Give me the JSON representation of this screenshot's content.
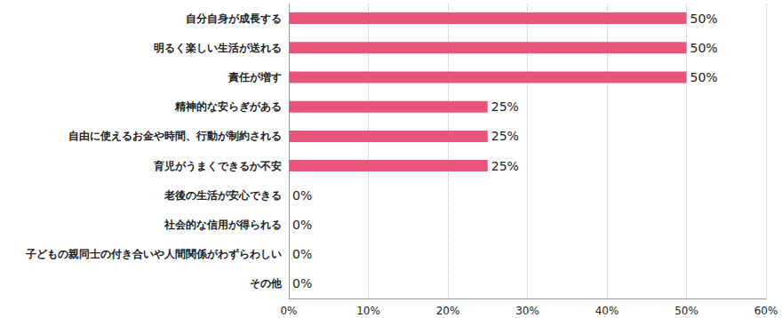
{
  "chart_data": {
    "type": "bar",
    "orientation": "horizontal",
    "categories": [
      "自分自身が成長する",
      "明るく楽しい生活が送れる",
      "責任が増す",
      "精神的な安らぎがある",
      "自由に使えるお金や時間、行動が制約される",
      "育児がうまくできるか不安",
      "老後の生活が安心できる",
      "社会的な信用が得られる",
      "子どもの親同士の付き合いや人間関係がわずらわしい",
      "その他"
    ],
    "values": [
      50,
      50,
      50,
      25,
      25,
      25,
      0,
      0,
      0,
      0
    ],
    "value_labels": [
      "50%",
      "50%",
      "50%",
      "25%",
      "25%",
      "25%",
      "0%",
      "0%",
      "0%",
      "0%"
    ],
    "data_labels": true,
    "color": "#e8557b",
    "xlim": [
      0,
      60
    ],
    "xticks": [
      {
        "value": 0,
        "label": "0%"
      },
      {
        "value": 10,
        "label": "10%"
      },
      {
        "value": 20,
        "label": "20%"
      },
      {
        "value": 30,
        "label": "30%"
      },
      {
        "value": 40,
        "label": "40%"
      },
      {
        "value": 50,
        "label": "50%"
      },
      {
        "value": 60,
        "label": "60%"
      }
    ],
    "grid": true
  }
}
